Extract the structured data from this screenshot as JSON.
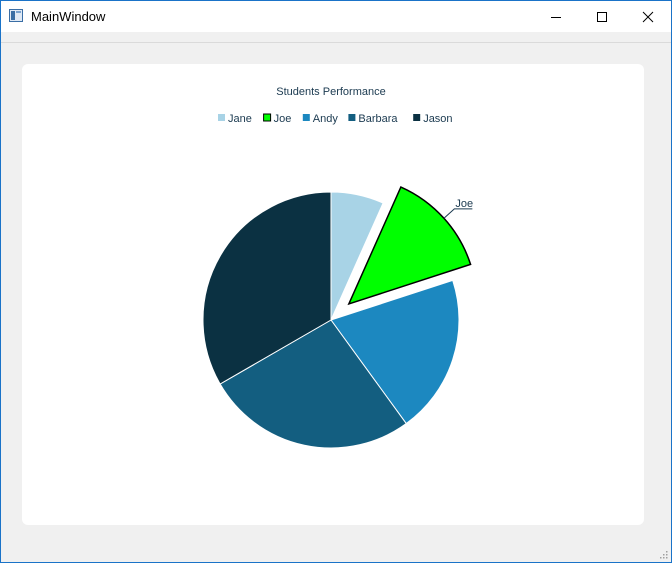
{
  "window": {
    "title": "MainWindow",
    "minimize_icon": "minimize-icon",
    "maximize_icon": "maximize-icon",
    "close_icon": "close-icon"
  },
  "chart_data": {
    "type": "pie",
    "title": "Students Performance",
    "legend_position": "top",
    "categories": [
      "Jane",
      "Joe",
      "Andy",
      "Barbara",
      "Jason"
    ],
    "values": [
      1,
      2,
      3,
      4,
      5
    ],
    "colors": [
      "#a8d3e6",
      "#00ff00",
      "#1c88c0",
      "#135e80",
      "#0b3142"
    ],
    "exploded": "Joe",
    "callout_label": "Joe"
  }
}
